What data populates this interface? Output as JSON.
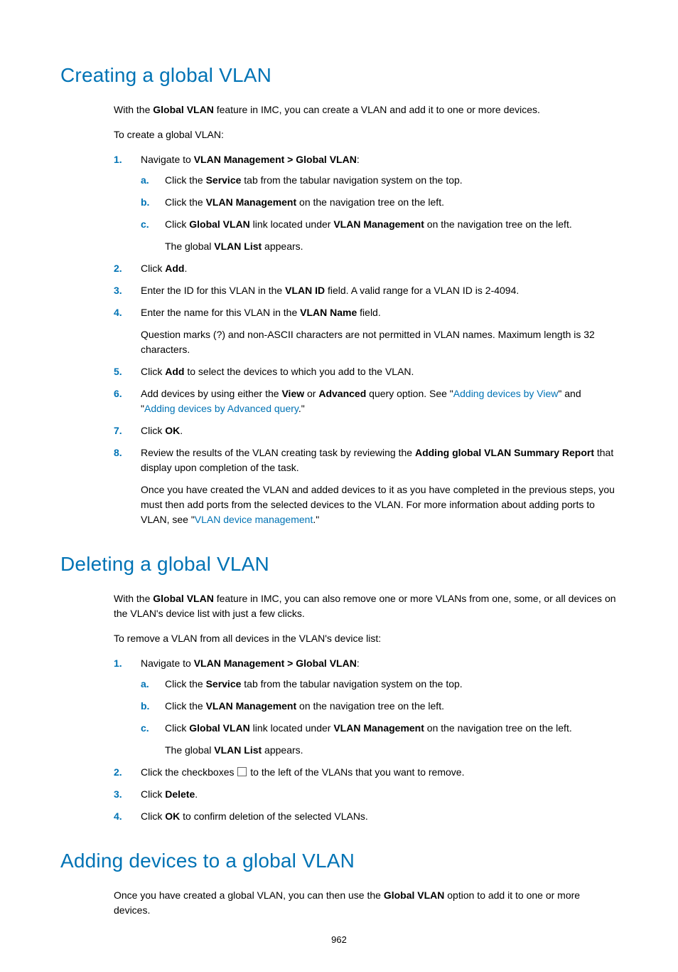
{
  "page_number": "962",
  "colors": {
    "heading": "#0073b5",
    "link": "#0073b5",
    "list_marker": "#0073b5",
    "body_text": "#000000",
    "background": "#ffffff"
  },
  "sections": [
    {
      "id": "creating",
      "heading": "Creating a global VLAN",
      "intro_html": "With the <span class=\"b\">Global VLAN</span> feature in IMC, you can create a VLAN and add it to one or more devices.",
      "lead": "To create a global VLAN:",
      "steps": [
        {
          "num": "1.",
          "html": "Navigate to <span class=\"b\">VLAN Management &gt; Global VLAN</span>:",
          "sub": [
            {
              "m": "a.",
              "html": "Click the <span class=\"b\">Service</span> tab from the tabular navigation system on the top."
            },
            {
              "m": "b.",
              "html": "Click the <span class=\"b\">VLAN Management</span> on the navigation tree on the left."
            },
            {
              "m": "c.",
              "html": "Click <span class=\"b\">Global VLAN</span> link located under <span class=\"b\">VLAN Management</span> on the navigation tree on the left.",
              "after_html": "The global <span class=\"b\">VLAN List</span> appears."
            }
          ]
        },
        {
          "num": "2.",
          "html": "Click <span class=\"b\">Add</span>."
        },
        {
          "num": "3.",
          "html": "Enter the ID for this VLAN in the <span class=\"b\">VLAN ID</span> field. A valid range for a VLAN ID is 2-4094."
        },
        {
          "num": "4.",
          "html": "Enter the name for this VLAN in the <span class=\"b\">VLAN Name</span> field.",
          "after_html": "Question marks (?) and non-ASCII characters are not permitted in VLAN names. Maximum length is 32 characters."
        },
        {
          "num": "5.",
          "html": "Click <span class=\"b\">Add</span> to select the devices to which you add to the VLAN."
        },
        {
          "num": "6.",
          "html": "Add devices by using either the <span class=\"b\">View</span> or <span class=\"b\">Advanced</span> query option. See \"<a class=\"link\" data-name=\"link-adding-devices-by-view\" data-interactable=\"true\">Adding devices by View</a>\" and \"<a class=\"link\" data-name=\"link-adding-devices-by-advanced-query\" data-interactable=\"true\">Adding devices by Advanced query</a>.\""
        },
        {
          "num": "7.",
          "html": "Click <span class=\"b\">OK</span>."
        },
        {
          "num": "8.",
          "html": "Review the results of the VLAN creating task by reviewing the <span class=\"b\">Adding global VLAN Summary Report</span> that display upon completion of the task.",
          "after_html": "Once you have created the VLAN and added devices to it as you have completed in the previous steps, you must then add ports from the selected devices to the VLAN. For more information about adding ports to VLAN, see \"<a class=\"link\" data-name=\"link-vlan-device-management\" data-interactable=\"true\">VLAN device management</a>.\""
        }
      ]
    },
    {
      "id": "deleting",
      "heading": "Deleting a global VLAN",
      "intro_html": "With the <span class=\"b\">Global VLAN</span> feature in IMC, you can also remove one or more VLANs from one, some, or all devices on the VLAN's device list with just a few clicks.",
      "lead": "To remove a VLAN from all devices in the VLAN's device list:",
      "steps": [
        {
          "num": "1.",
          "html": "Navigate to <span class=\"b\">VLAN Management &gt; Global VLAN</span>:",
          "sub": [
            {
              "m": "a.",
              "html": "Click the <span class=\"b\">Service</span> tab from the tabular navigation system on the top."
            },
            {
              "m": "b.",
              "html": "Click the <span class=\"b\">VLAN Management</span> on the navigation tree on the left."
            },
            {
              "m": "c.",
              "html": "Click <span class=\"b\">Global VLAN</span> link located under <span class=\"b\">VLAN Management</span> on the navigation tree on the left.",
              "after_html": "The global <span class=\"b\">VLAN List</span> appears."
            }
          ]
        },
        {
          "num": "2.",
          "html": "Click the checkboxes <span class=\"checkbox-icon\" data-name=\"checkbox-icon\" data-interactable=\"false\"></span> to the left of the VLANs that you want to remove."
        },
        {
          "num": "3.",
          "html": "Click <span class=\"b\">Delete</span>."
        },
        {
          "num": "4.",
          "html": "Click <span class=\"b\">OK</span> to confirm deletion of the selected VLANs."
        }
      ]
    },
    {
      "id": "adding-devices",
      "heading": "Adding devices to a global VLAN",
      "intro_html": "Once you have created a global VLAN, you can then use the <span class=\"b\">Global VLAN</span> option to add it to one or more devices."
    }
  ]
}
